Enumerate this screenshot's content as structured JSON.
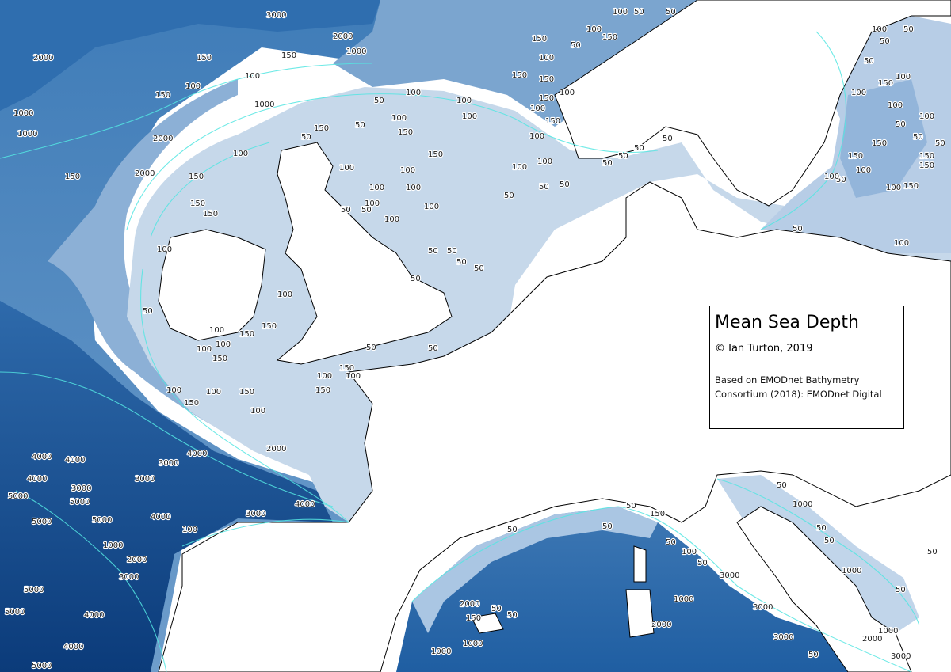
{
  "legend": {
    "title": "Mean Sea Depth",
    "copyright": "© Ian Turton, 2019",
    "source_line1": "Based on EMODnet Bathymetry",
    "source_line2": "Consortium (2018): EMODnet Digital"
  },
  "colors": {
    "land": "#ffffff",
    "shelf": "#c9d9ea",
    "slope": "#7fa7cf",
    "deep": "#4f86bd",
    "abyss": "#0d3f80",
    "contour": "#4fe3e0",
    "coastline": "#000000"
  },
  "contour_labels": [
    {
      "t": "3000"
    },
    {
      "t": "2000"
    },
    {
      "t": "1000"
    },
    {
      "t": "2000"
    },
    {
      "t": "150"
    },
    {
      "t": "150"
    },
    {
      "t": "100"
    },
    {
      "t": "100"
    },
    {
      "t": "150"
    },
    {
      "t": "1000"
    },
    {
      "t": "1000"
    },
    {
      "t": "2000"
    },
    {
      "t": "1000"
    },
    {
      "t": "150"
    },
    {
      "t": "2000"
    },
    {
      "t": "150"
    },
    {
      "t": "150"
    },
    {
      "t": "100"
    },
    {
      "t": "150"
    },
    {
      "t": "100"
    },
    {
      "t": "50"
    },
    {
      "t": "50"
    },
    {
      "t": "50"
    },
    {
      "t": "100"
    },
    {
      "t": "150"
    },
    {
      "t": "150"
    },
    {
      "t": "100"
    },
    {
      "t": "150"
    },
    {
      "t": "100"
    },
    {
      "t": "150"
    },
    {
      "t": "100"
    },
    {
      "t": "50"
    },
    {
      "t": "100"
    },
    {
      "t": "100"
    },
    {
      "t": "100"
    },
    {
      "t": "50"
    },
    {
      "t": "100"
    },
    {
      "t": "50"
    },
    {
      "t": "100"
    },
    {
      "t": "150"
    },
    {
      "t": "150"
    },
    {
      "t": "150"
    },
    {
      "t": "100"
    },
    {
      "t": "100"
    },
    {
      "t": "150"
    },
    {
      "t": "150"
    },
    {
      "t": "100"
    },
    {
      "t": "100"
    },
    {
      "t": "100"
    },
    {
      "t": "100"
    },
    {
      "t": "100"
    },
    {
      "t": "50"
    },
    {
      "t": "50"
    },
    {
      "t": "50"
    },
    {
      "t": "50"
    },
    {
      "t": "50"
    },
    {
      "t": "100"
    },
    {
      "t": "100"
    },
    {
      "t": "50"
    },
    {
      "t": "50"
    },
    {
      "t": "50"
    },
    {
      "t": "50"
    },
    {
      "t": "50"
    },
    {
      "t": "50"
    },
    {
      "t": "50"
    },
    {
      "t": "50"
    },
    {
      "t": "50"
    },
    {
      "t": "100"
    },
    {
      "t": "50"
    },
    {
      "t": "100"
    },
    {
      "t": "150"
    },
    {
      "t": "100"
    },
    {
      "t": "100"
    },
    {
      "t": "100"
    },
    {
      "t": "150"
    },
    {
      "t": "150"
    },
    {
      "t": "100"
    },
    {
      "t": "150"
    },
    {
      "t": "100"
    },
    {
      "t": "150"
    },
    {
      "t": "100"
    },
    {
      "t": "150"
    },
    {
      "t": "100"
    },
    {
      "t": "150"
    },
    {
      "t": "100"
    },
    {
      "t": "50"
    },
    {
      "t": "50"
    },
    {
      "t": "100"
    },
    {
      "t": "100"
    },
    {
      "t": "50"
    },
    {
      "t": "50"
    },
    {
      "t": "50"
    },
    {
      "t": "150"
    },
    {
      "t": "100"
    },
    {
      "t": "150"
    },
    {
      "t": "150"
    },
    {
      "t": "100"
    },
    {
      "t": "50"
    },
    {
      "t": "150"
    },
    {
      "t": "50"
    },
    {
      "t": "100"
    },
    {
      "t": "50"
    },
    {
      "t": "50"
    },
    {
      "t": "100"
    },
    {
      "t": "100"
    },
    {
      "t": "150"
    },
    {
      "t": "100"
    },
    {
      "t": "50"
    },
    {
      "t": "100"
    },
    {
      "t": "150"
    },
    {
      "t": "2000"
    },
    {
      "t": "4000"
    },
    {
      "t": "4000"
    },
    {
      "t": "3000"
    },
    {
      "t": "4000"
    },
    {
      "t": "3000"
    },
    {
      "t": "5000"
    },
    {
      "t": "5000"
    },
    {
      "t": "5000"
    },
    {
      "t": "4000"
    },
    {
      "t": "5000"
    },
    {
      "t": "3000"
    },
    {
      "t": "3000"
    },
    {
      "t": "4000"
    },
    {
      "t": "4000"
    },
    {
      "t": "100"
    },
    {
      "t": "1000"
    },
    {
      "t": "2000"
    },
    {
      "t": "3000"
    },
    {
      "t": "5000"
    },
    {
      "t": "5000"
    },
    {
      "t": "4000"
    },
    {
      "t": "4000"
    },
    {
      "t": "5000"
    },
    {
      "t": "50"
    },
    {
      "t": "50"
    },
    {
      "t": "50"
    },
    {
      "t": "2000"
    },
    {
      "t": "50"
    },
    {
      "t": "150"
    },
    {
      "t": "1000"
    },
    {
      "t": "1000"
    },
    {
      "t": "50"
    },
    {
      "t": "150"
    },
    {
      "t": "50"
    },
    {
      "t": "100"
    },
    {
      "t": "50"
    },
    {
      "t": "1000"
    },
    {
      "t": "2000"
    },
    {
      "t": "3000"
    },
    {
      "t": "3000"
    },
    {
      "t": "3000"
    },
    {
      "t": "50"
    },
    {
      "t": "1000"
    },
    {
      "t": "1000"
    },
    {
      "t": "2000"
    },
    {
      "t": "3000"
    },
    {
      "t": "50"
    },
    {
      "t": "50"
    },
    {
      "t": "50"
    },
    {
      "t": "1000"
    },
    {
      "t": "50"
    },
    {
      "t": "50"
    },
    {
      "t": "50"
    },
    {
      "t": "50"
    }
  ]
}
